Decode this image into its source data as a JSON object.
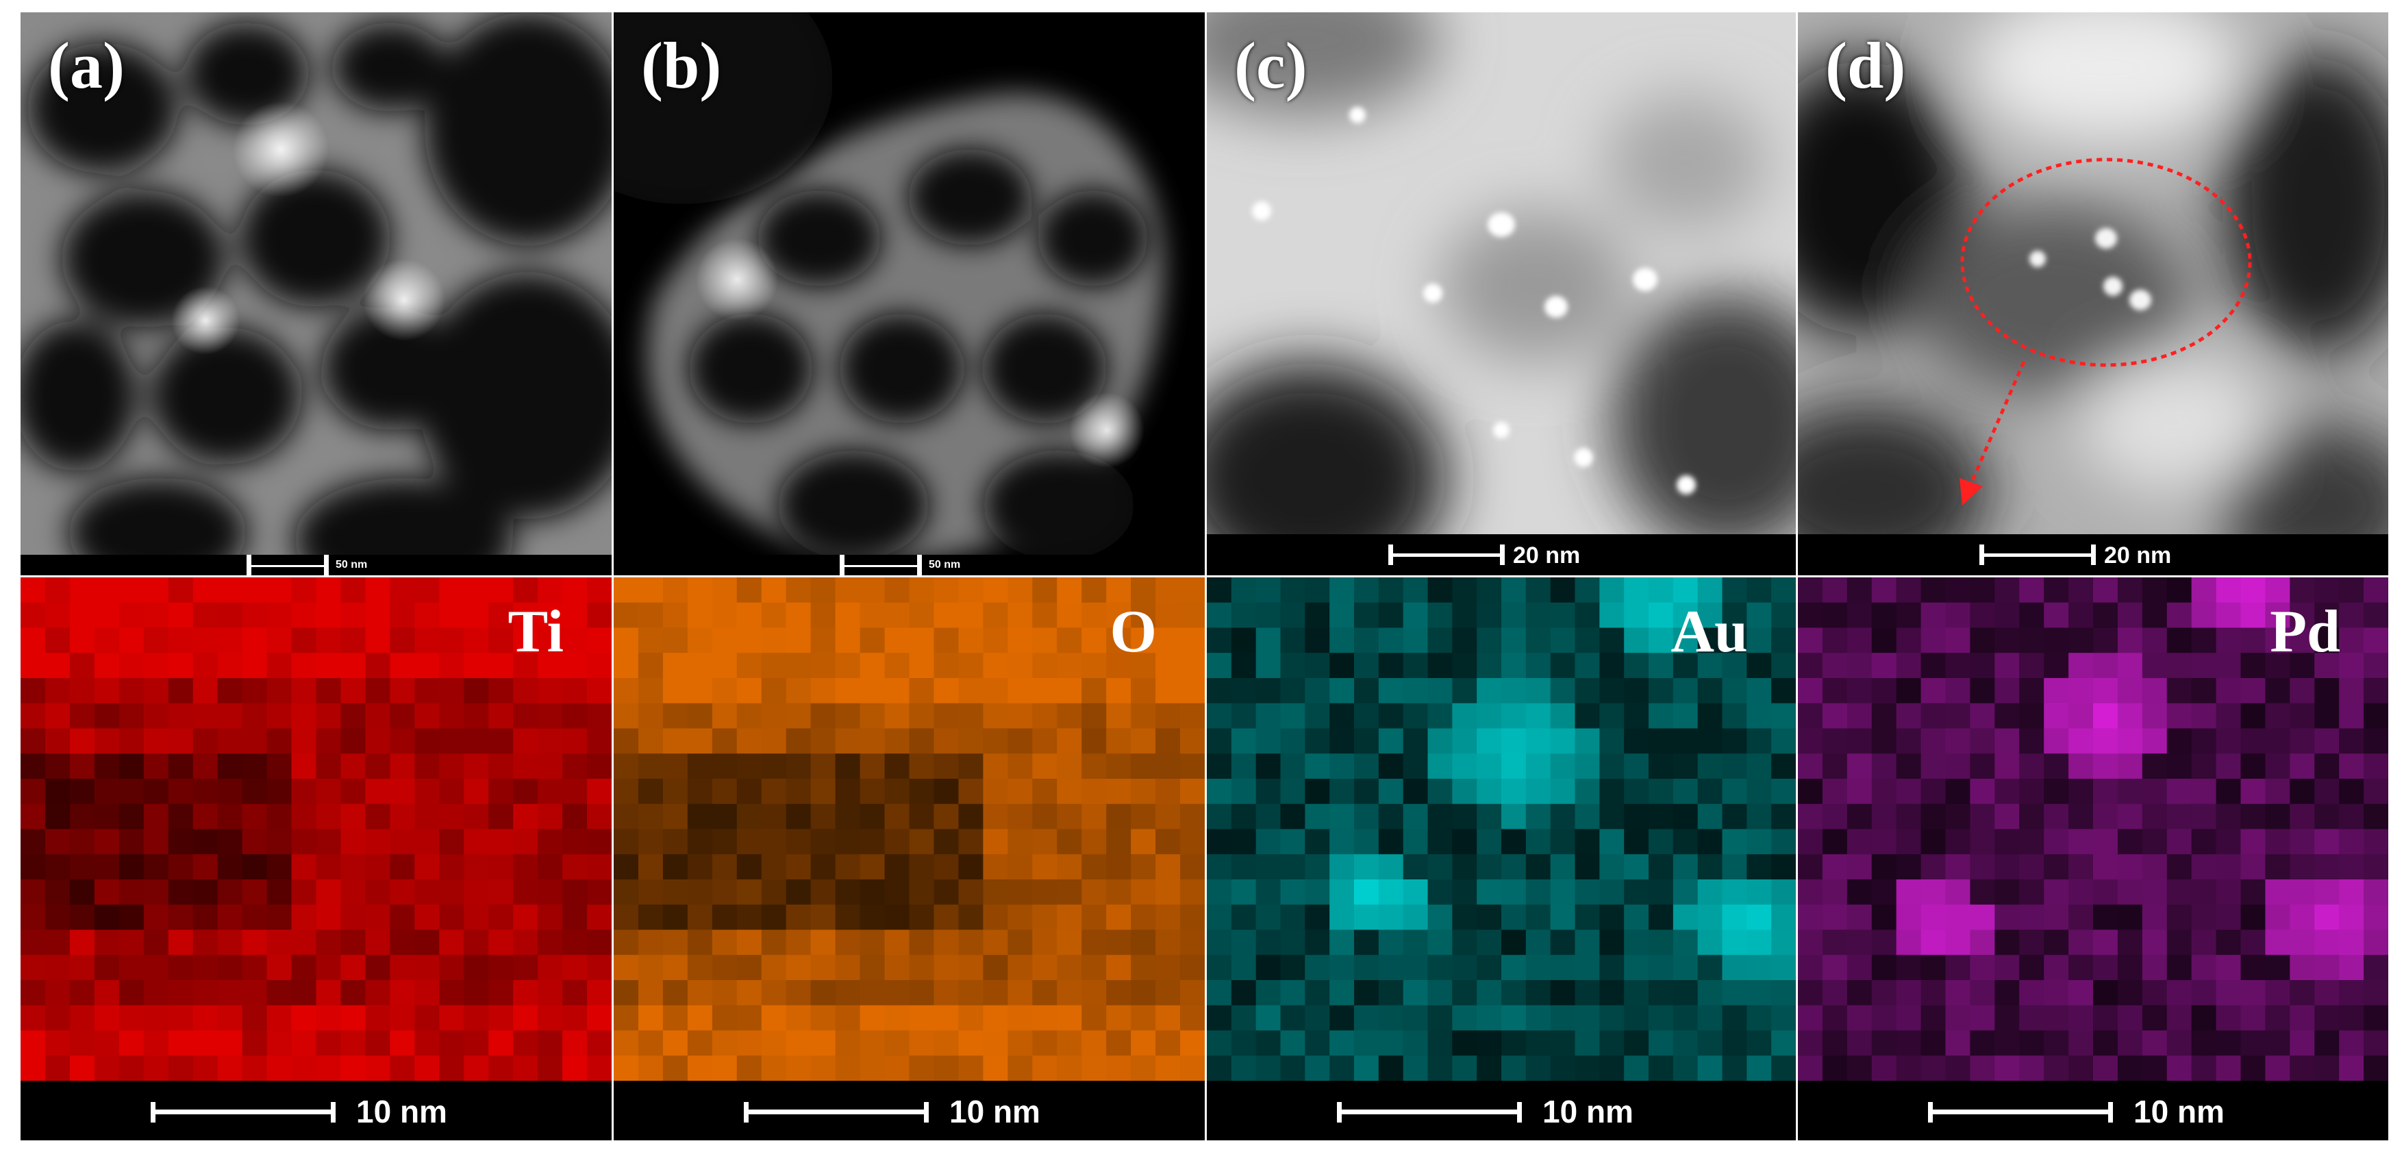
{
  "top_row": [
    {
      "id": "a",
      "label": "(a)",
      "scale": "50 nm",
      "style": "tem-sponge"
    },
    {
      "id": "b",
      "label": "(b)",
      "scale": "50 nm",
      "style": "tem-sponge"
    },
    {
      "id": "c",
      "label": "(c)",
      "scale": "20 nm",
      "style": "stem-zoom"
    },
    {
      "id": "d",
      "label": "(d)",
      "scale": "20 nm",
      "style": "stem-zoom"
    }
  ],
  "bottom_row": [
    {
      "element": "Ti",
      "color": "#e00000",
      "scale": "10 nm"
    },
    {
      "element": "O",
      "color": "#e06a00",
      "scale": "10 nm"
    },
    {
      "element": "Au",
      "color": "#00d8d8",
      "scale": "10 nm"
    },
    {
      "element": "Pd",
      "color": "#e020e0",
      "scale": "10 nm"
    }
  ],
  "annotation": {
    "shape": "dashed-ellipse-with-arrow",
    "color": "#ff2020"
  }
}
